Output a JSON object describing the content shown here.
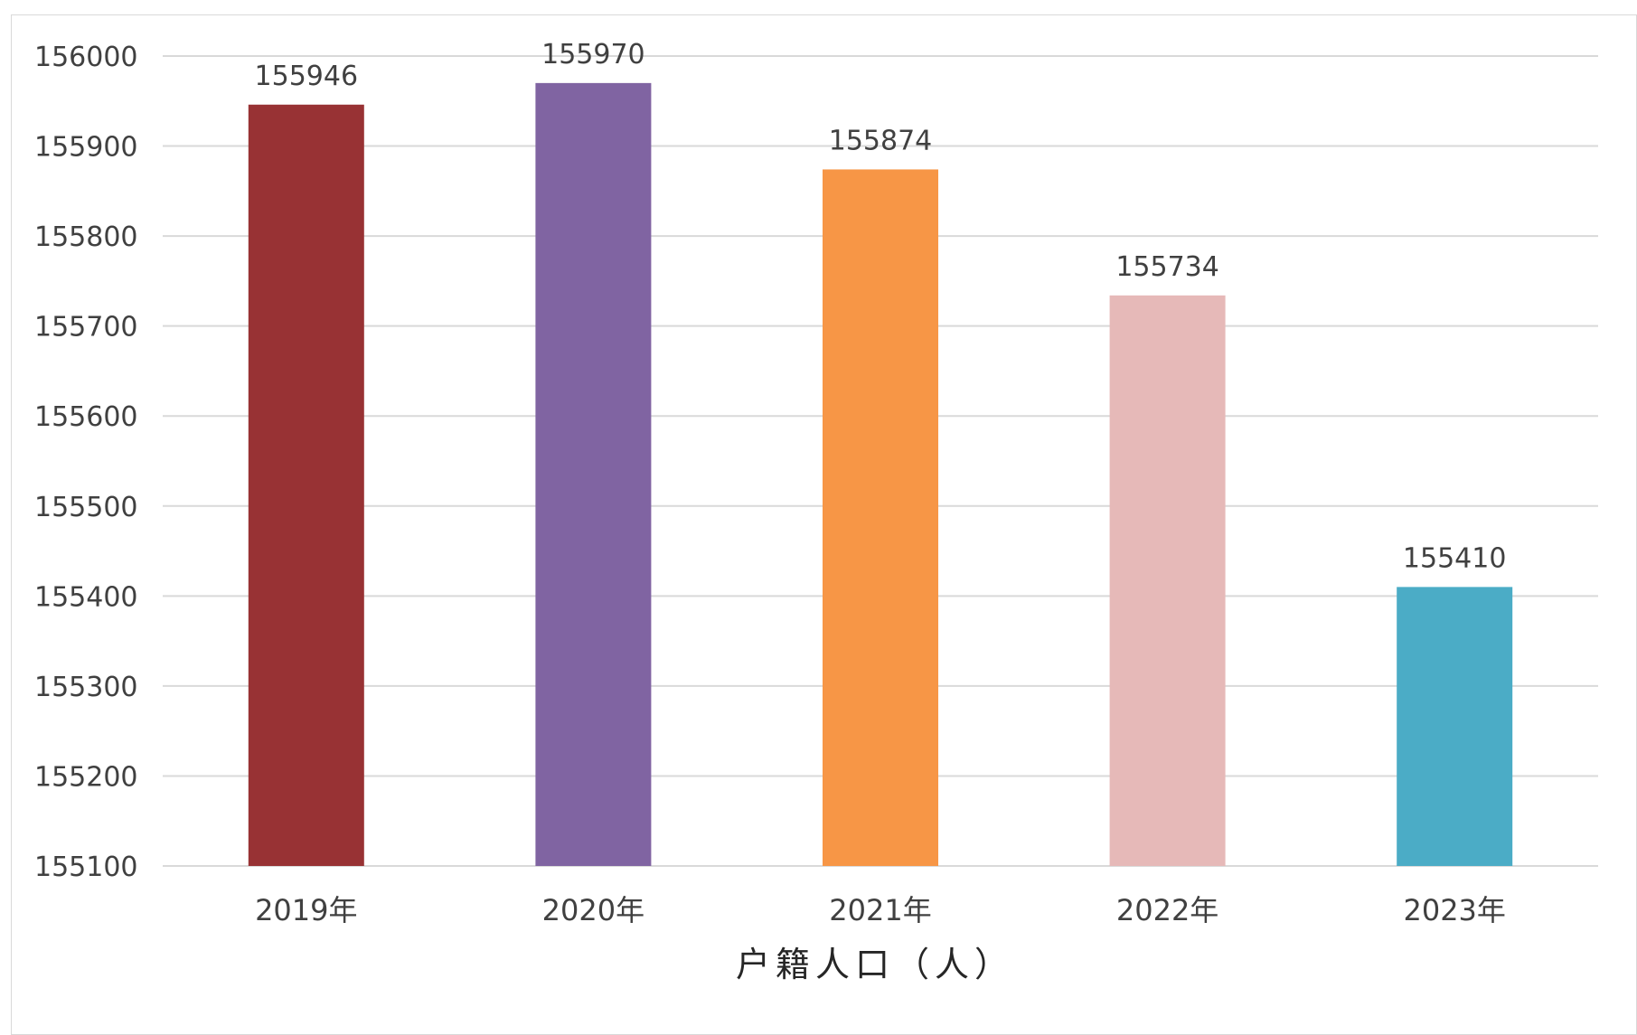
{
  "chart_data": {
    "type": "bar",
    "categories": [
      "2019年",
      "2020年",
      "2021年",
      "2022年",
      "2023年"
    ],
    "values": [
      155946,
      155970,
      155874,
      155734,
      155410
    ],
    "data_labels": [
      "155946",
      "155970",
      "155874",
      "155734",
      "155410"
    ],
    "colors": [
      "#983234",
      "#8064A2",
      "#F79646",
      "#E6B9B8",
      "#4BACC6"
    ],
    "title": "",
    "xlabel": "户籍人口（人）",
    "ylabel": "",
    "ylim": [
      155100,
      156000
    ],
    "yticks": [
      155100,
      155200,
      155300,
      155400,
      155500,
      155600,
      155700,
      155800,
      155900,
      156000
    ],
    "ytick_labels": [
      "155100",
      "155200",
      "155300",
      "155400",
      "155500",
      "155600",
      "155700",
      "155800",
      "155900",
      "156000"
    ],
    "grid": true,
    "legend": false
  }
}
